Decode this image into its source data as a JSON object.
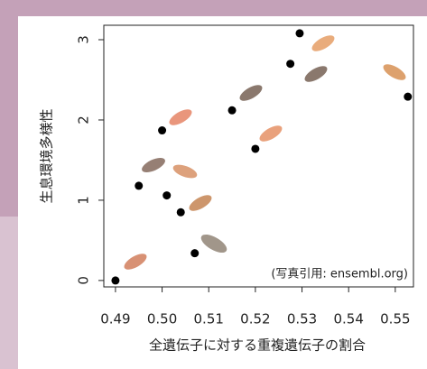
{
  "chart_data": {
    "type": "scatter",
    "xlabel": "全遺伝子に対する重複遺伝子の割合",
    "ylabel": "生息環境多様性",
    "annotation": "(写真引用: ensembl.org)",
    "x": [
      0.49,
      0.495,
      0.5,
      0.501,
      0.504,
      0.507,
      0.515,
      0.52,
      0.5275,
      0.5295,
      0.5527
    ],
    "values": [
      0,
      1.18,
      1.87,
      1.06,
      0.85,
      0.34,
      2.12,
      1.64,
      2.7,
      3.08,
      2.29
    ],
    "color": "#000000",
    "xlim": [
      0.4875,
      0.5539
    ],
    "ylim": [
      -0.08,
      3.18
    ],
    "xticks": [
      0.49,
      {
        "value": 0.5,
        "label": "0.50"
      },
      0.51,
      0.52,
      0.53,
      0.54,
      0.55
    ],
    "yticks": [
      0,
      1,
      2,
      3
    ]
  }
}
